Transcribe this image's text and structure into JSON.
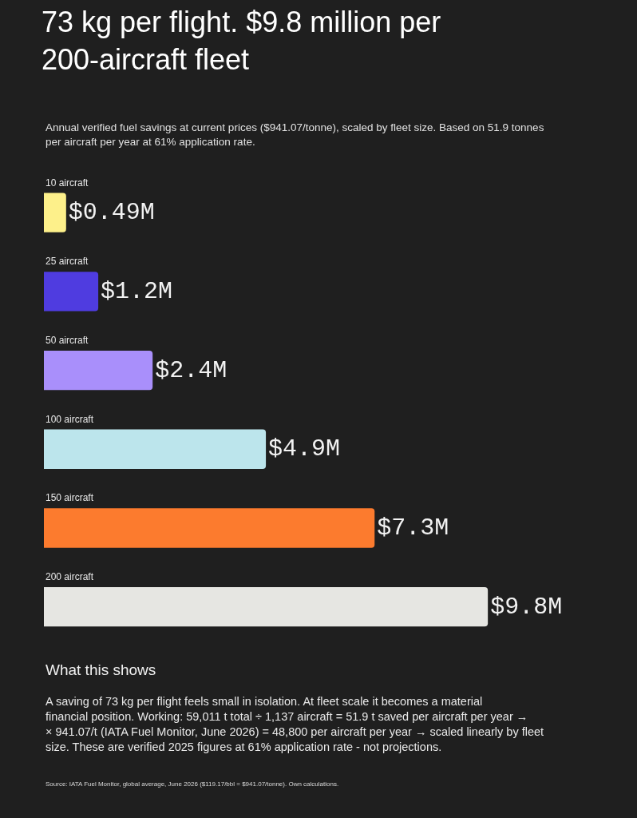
{
  "chart_data": {
    "type": "bar",
    "orientation": "horizontal",
    "title": "73 kg per flight. $9.8 million per 200-aircraft fleet",
    "subtitle": "Annual verified fuel savings at current prices ($941.07/tonne), scaled by fleet size. Based on 51.9 tonnes per aircraft per year at 61% application rate.",
    "categories": [
      "10 aircraft",
      "25 aircraft",
      "50 aircraft",
      "100 aircraft",
      "150 aircraft",
      "200 aircraft"
    ],
    "values": [
      0.49,
      1.2,
      2.4,
      4.9,
      7.3,
      9.8
    ],
    "value_labels": [
      "$0.49M",
      "$1.2M",
      "$2.4M",
      "$4.9M",
      "$7.3M",
      "$9.8M"
    ],
    "colors": [
      "#fdf08a",
      "#4f3ce0",
      "#a98ffb",
      "#bce5ec",
      "#fc7b2e",
      "#e6e6e2"
    ],
    "annotations": [
      "What this shows",
      "A saving of 73 kg per flight feels small in isolation. At fleet scale it becomes a material financial position. Working: 59,011 t total ÷ 1,137 aircraft = 51.9 t saved per aircraft per year → × 941.07/t (IATA Fuel Monitor, June 2026) = 48,800 per aircraft per year → scaled linearly by fleet size. These are verified 2025 figures at 61% application rate - not projections.",
      "Source: IATA Fuel Monitor, global average, June 2026 ($119.17/bbl = $941.07/tonne). Own calculations."
    ],
    "grid": false
  }
}
